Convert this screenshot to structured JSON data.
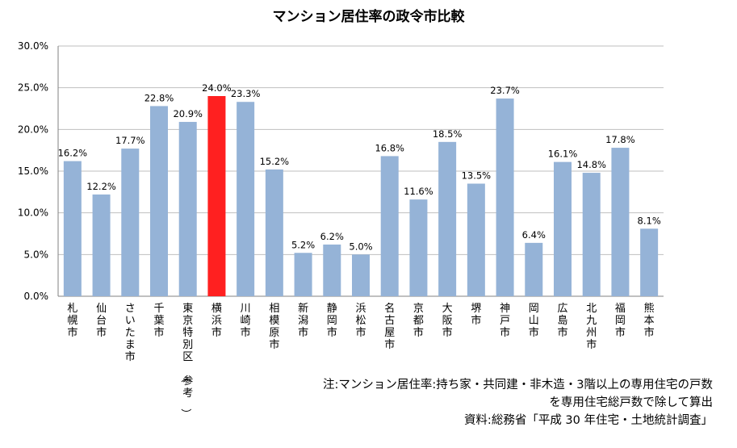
{
  "chart_data": {
    "type": "bar",
    "title": "マンション居住率の政令市比較",
    "categories": [
      "札幌市",
      "仙台市",
      "さいたま市",
      "千葉市",
      "東京特別区（参考）",
      "横浜市",
      "川崎市",
      "相模原市",
      "新潟市",
      "静岡市",
      "浜松市",
      "名古屋市",
      "京都市",
      "大阪市",
      "堺市",
      "神戸市",
      "岡山市",
      "広島市",
      "北九州市",
      "福岡市",
      "熊本市"
    ],
    "values": [
      16.2,
      12.2,
      17.7,
      22.8,
      20.9,
      24.0,
      23.3,
      15.2,
      5.2,
      6.2,
      5.0,
      16.8,
      11.6,
      18.5,
      13.5,
      23.7,
      6.4,
      16.1,
      14.8,
      17.8,
      8.1
    ],
    "value_labels": [
      "16.2%",
      "12.2%",
      "17.7%",
      "22.8%",
      "20.9%",
      "24.0%",
      "23.3%",
      "15.2%",
      "5.2%",
      "6.2%",
      "5.0%",
      "16.8%",
      "11.6%",
      "18.5%",
      "13.5%",
      "23.7%",
      "6.4%",
      "16.1%",
      "14.8%",
      "17.8%",
      "8.1%"
    ],
    "highlight_index": 5,
    "ylim": [
      0,
      30
    ],
    "yticks": [
      0,
      5,
      10,
      15,
      20,
      25,
      30
    ],
    "ytick_labels": [
      "0.0%",
      "5.0%",
      "10.0%",
      "15.0%",
      "20.0%",
      "25.0%",
      "30.0%"
    ],
    "grid": true,
    "xlabel": "",
    "ylabel": ""
  },
  "colors": {
    "bar": "#95b3d7",
    "highlight": "#ff2020",
    "grid": "#bfbfbf",
    "axis": "#808080"
  },
  "notes": {
    "line1": "注:マンション居住率:持ち家・共同建・非木造・3階以上の専用住宅の戸数",
    "line2": "を専用住宅総戸数で除して算出",
    "line3": "資料:総務省「平成 30 年住宅・土地統計調査」"
  }
}
